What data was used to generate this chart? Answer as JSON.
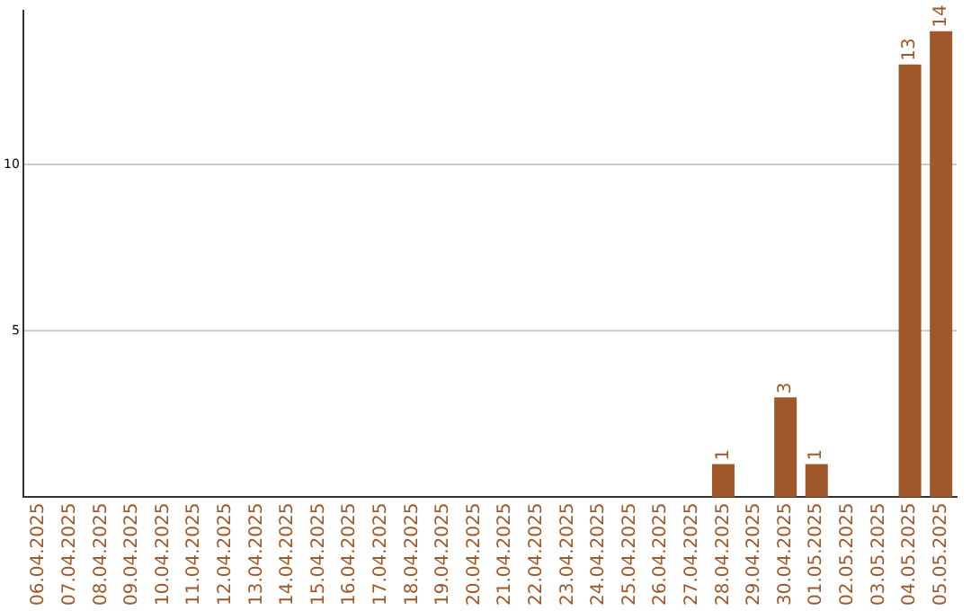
{
  "chart_data": {
    "type": "bar",
    "categories": [
      "06.04.2025",
      "07.04.2025",
      "08.04.2025",
      "09.04.2025",
      "10.04.2025",
      "11.04.2025",
      "12.04.2025",
      "13.04.2025",
      "14.04.2025",
      "15.04.2025",
      "16.04.2025",
      "17.04.2025",
      "18.04.2025",
      "19.04.2025",
      "20.04.2025",
      "21.04.2025",
      "22.04.2025",
      "23.04.2025",
      "24.04.2025",
      "25.04.2025",
      "26.04.2025",
      "27.04.2025",
      "28.04.2025",
      "29.04.2025",
      "30.04.2025",
      "01.05.2025",
      "02.05.2025",
      "03.05.2025",
      "04.05.2025",
      "05.05.2025"
    ],
    "values": [
      0,
      0,
      0,
      0,
      0,
      0,
      0,
      0,
      0,
      0,
      0,
      0,
      0,
      0,
      0,
      0,
      0,
      0,
      0,
      0,
      0,
      0,
      1,
      0,
      3,
      1,
      0,
      0,
      13,
      14
    ],
    "value_labels": [
      null,
      null,
      null,
      null,
      null,
      null,
      null,
      null,
      null,
      null,
      null,
      null,
      null,
      null,
      null,
      null,
      null,
      null,
      null,
      null,
      null,
      null,
      "1",
      null,
      "3",
      "1",
      null,
      null,
      "13",
      "14"
    ],
    "color": "#a0582a",
    "ylim": [
      0,
      14.6
    ],
    "yticks": [
      5,
      10
    ],
    "grid": "y",
    "legend": false
  }
}
